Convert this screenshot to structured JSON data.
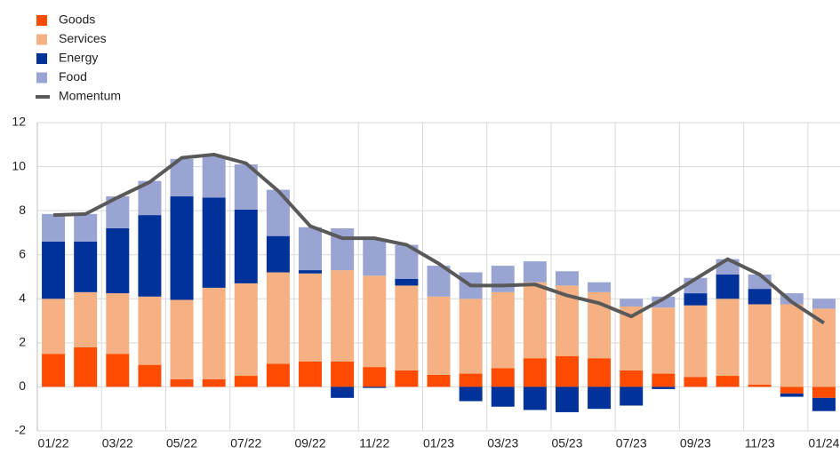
{
  "chart_data": {
    "type": "stacked_bar_line",
    "categories": [
      "01/22",
      null,
      "03/22",
      null,
      "05/22",
      null,
      "07/22",
      null,
      "09/22",
      null,
      "11/22",
      null,
      "01/23",
      null,
      "03/23",
      null,
      "05/23",
      null,
      "07/23",
      null,
      "09/23",
      null,
      "11/23",
      null,
      "01/24"
    ],
    "series": [
      {
        "name": "Goods",
        "color": "#ff4b00",
        "values": [
          1.5,
          1.8,
          1.5,
          1.0,
          0.35,
          0.35,
          0.5,
          1.05,
          1.15,
          1.15,
          0.9,
          0.75,
          0.55,
          0.6,
          0.85,
          1.3,
          1.4,
          1.3,
          0.75,
          0.6,
          0.45,
          0.5,
          0.1,
          -0.3,
          -0.5
        ]
      },
      {
        "name": "Services",
        "color": "#f5b183",
        "values": [
          2.5,
          2.5,
          2.75,
          3.1,
          3.6,
          4.15,
          4.2,
          4.15,
          4.0,
          4.15,
          4.15,
          3.85,
          3.55,
          3.4,
          3.45,
          3.45,
          3.2,
          3.0,
          2.9,
          3.0,
          3.25,
          3.5,
          3.65,
          3.75,
          3.55
        ]
      },
      {
        "name": "Energy",
        "color": "#003299",
        "values": [
          2.6,
          2.3,
          2.95,
          3.7,
          4.7,
          4.1,
          3.35,
          1.65,
          0.15,
          -0.5,
          -0.05,
          0.3,
          0,
          -0.65,
          -0.9,
          -1.05,
          -1.15,
          -1.0,
          -0.85,
          -0.1,
          0.55,
          1.1,
          0.7,
          -0.15,
          -0.6
        ]
      },
      {
        "name": "Food",
        "color": "#99a4d3",
        "values": [
          1.25,
          1.25,
          1.45,
          1.55,
          1.7,
          1.9,
          2.05,
          2.1,
          1.95,
          1.9,
          1.65,
          1.55,
          1.4,
          1.2,
          1.2,
          0.95,
          0.65,
          0.45,
          0.35,
          0.5,
          0.7,
          0.7,
          0.65,
          0.5,
          0.45
        ]
      },
      {
        "name": "Momentum",
        "type": "line",
        "color": "#595959",
        "values": [
          7.8,
          7.85,
          8.6,
          9.3,
          10.4,
          10.55,
          10.15,
          8.9,
          7.3,
          6.75,
          6.75,
          6.45,
          5.6,
          4.6,
          4.6,
          4.65,
          4.15,
          3.8,
          3.2,
          4.0,
          4.9,
          5.8,
          5.1,
          3.85,
          2.9
        ]
      }
    ],
    "ylim": [
      -2,
      12
    ],
    "yticks": [
      -2,
      0,
      2,
      4,
      6,
      8,
      10,
      12
    ],
    "grid": true,
    "legend": "top-left"
  }
}
